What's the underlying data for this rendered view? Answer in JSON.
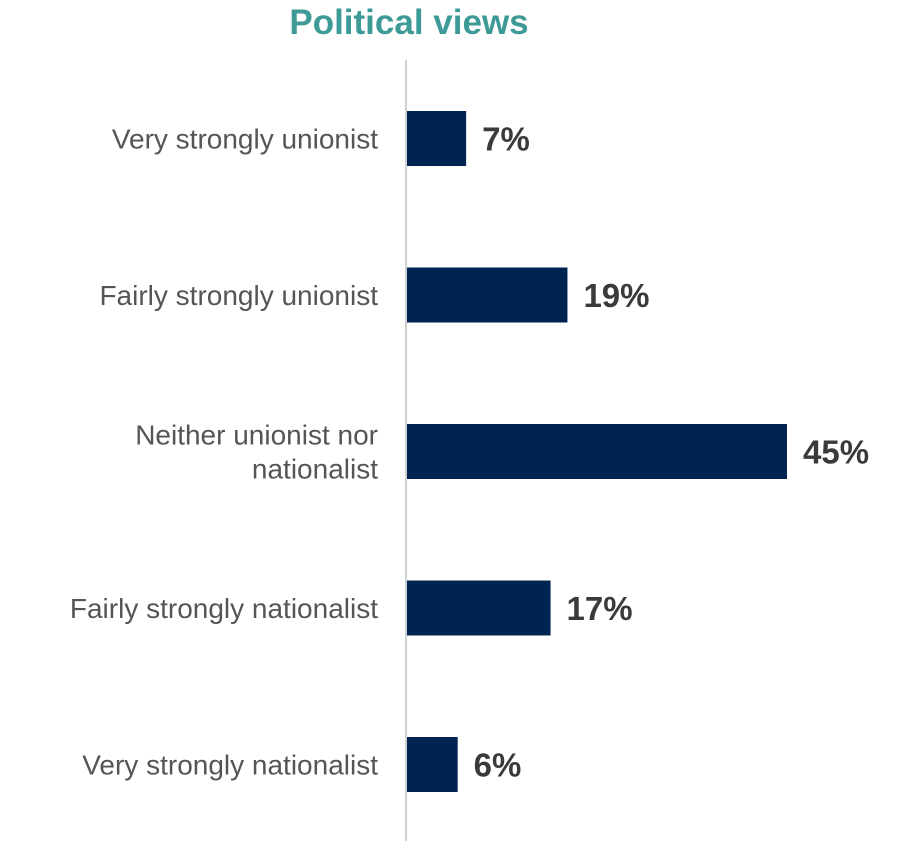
{
  "chart_data": {
    "type": "bar",
    "orientation": "horizontal",
    "title": "Political views",
    "categories": [
      [
        "Very strongly unionist"
      ],
      [
        "Fairly strongly unionist"
      ],
      [
        "Neither unionist nor",
        "nationalist"
      ],
      [
        "Fairly strongly nationalist"
      ],
      [
        "Very strongly nationalist"
      ]
    ],
    "values": [
      7,
      19,
      45,
      17,
      6
    ],
    "value_labels": [
      "7%",
      "19%",
      "45%",
      "17%",
      "6%"
    ],
    "unit": "%",
    "xlim": [
      0,
      50
    ],
    "grid": false,
    "legend": "none"
  },
  "colors": {
    "title": "#3e9a96",
    "bar": "#002452",
    "category_text": "#555555",
    "value_text": "#3a3a3a",
    "axis": "#d0d0d0"
  }
}
